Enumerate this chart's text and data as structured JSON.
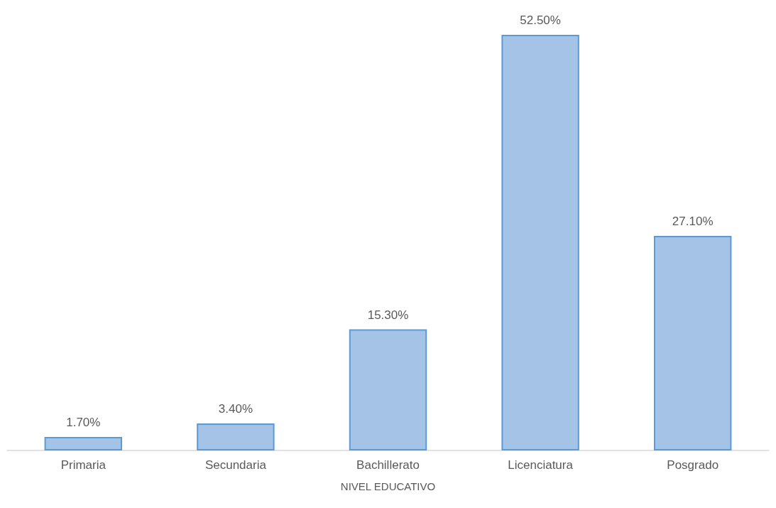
{
  "chart_data": {
    "type": "bar",
    "xlabel": "NIVEL EDUCATIVO",
    "categories": [
      "Primaria",
      "Secundaria",
      "Bachillerato",
      "Licenciatura",
      "Posgrado"
    ],
    "values": [
      1.7,
      3.4,
      15.3,
      52.5,
      27.1
    ],
    "value_labels": [
      "1.70%",
      "3.40%",
      "15.30%",
      "52.50%",
      "27.10%"
    ],
    "color": "#a5c3e7"
  }
}
